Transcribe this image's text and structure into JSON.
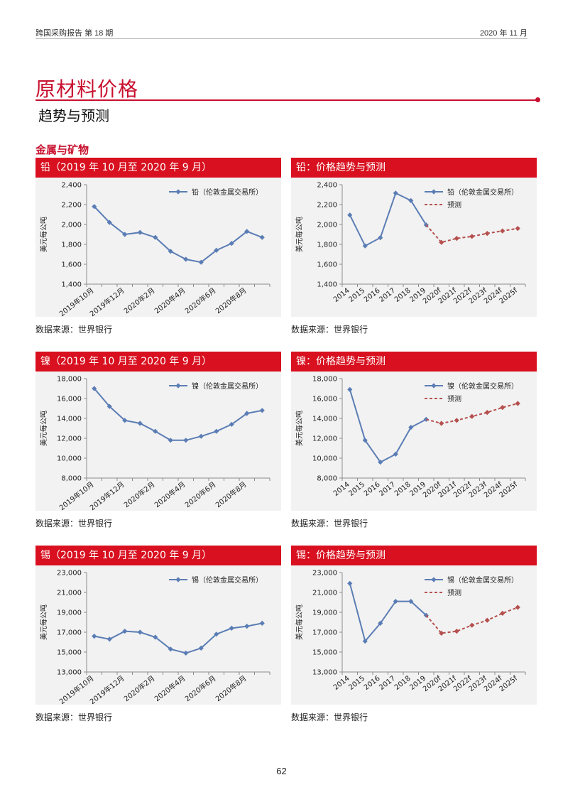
{
  "header": {
    "left": "跨国采购报告 第 18 期",
    "right": "2020 年 11 月"
  },
  "title": "原材料价格",
  "subtitle": "趋势与预测",
  "section": "金属与矿物",
  "page_number": "62",
  "colors": {
    "accent": "#d8101f",
    "series": "#5b7db5",
    "forecast": "#b5504f",
    "panel_bg": "#f2f2f2"
  },
  "chart_data": [
    {
      "id": "lead-monthly",
      "type": "line",
      "title": "铅（2019 年 10 月至 2020 年 9 月）",
      "ylabel": "美元每公吨",
      "ylim": [
        1400,
        2400
      ],
      "yticks": [
        1400,
        1600,
        1800,
        2000,
        2200,
        2400
      ],
      "x": [
        "2019年10月",
        "2019年11月",
        "2019年12月",
        "2020年1月",
        "2020年2月",
        "2020年3月",
        "2020年4月",
        "2020年5月",
        "2020年6月",
        "2020年7月",
        "2020年8月",
        "2020年9月"
      ],
      "xtick_labels": [
        "2019年10月",
        "2019年12月",
        "2020年2月",
        "2020年4月",
        "2020年6月",
        "2020年8月"
      ],
      "series": [
        {
          "name": "铅（伦敦金属交易所）",
          "values": [
            2180,
            2020,
            1900,
            1920,
            1870,
            1730,
            1650,
            1620,
            1740,
            1810,
            1930,
            1870
          ]
        }
      ],
      "legend": "top-right",
      "source": "数据来源：世界银行"
    },
    {
      "id": "lead-annual",
      "type": "line",
      "title": "铅：价格趋势与预测",
      "ylabel": "美元每公吨",
      "ylim": [
        1400,
        2400
      ],
      "yticks": [
        1400,
        1600,
        1800,
        2000,
        2200,
        2400
      ],
      "x": [
        "2014",
        "2015",
        "2016",
        "2017",
        "2018",
        "2019",
        "2020f",
        "2021f",
        "2022f",
        "2023f",
        "2024f",
        "2025f"
      ],
      "series": [
        {
          "name": "铅（伦敦金属交易所）",
          "values": [
            2095,
            1785,
            1867,
            2315,
            2240,
            1995,
            null,
            null,
            null,
            null,
            null,
            null
          ]
        },
        {
          "name": "预测",
          "values": [
            null,
            null,
            null,
            null,
            null,
            1995,
            1820,
            1860,
            1880,
            1910,
            1935,
            1960
          ]
        }
      ],
      "legend": "top-right",
      "source": "数据来源：世界银行"
    },
    {
      "id": "nickel-monthly",
      "type": "line",
      "title": "镍（2019 年 10 月至 2020 年 9 月）",
      "ylabel": "美元每公吨",
      "ylim": [
        8000,
        18000
      ],
      "yticks": [
        8000,
        10000,
        12000,
        14000,
        16000,
        18000
      ],
      "x": [
        "2019年10月",
        "2019年11月",
        "2019年12月",
        "2020年1月",
        "2020年2月",
        "2020年3月",
        "2020年4月",
        "2020年5月",
        "2020年6月",
        "2020年7月",
        "2020年8月",
        "2020年9月"
      ],
      "xtick_labels": [
        "2019年10月",
        "2019年12月",
        "2020年2月",
        "2020年4月",
        "2020年6月",
        "2020年8月"
      ],
      "series": [
        {
          "name": "镍（伦敦金属交易所）",
          "values": [
            17000,
            15200,
            13800,
            13500,
            12700,
            11800,
            11800,
            12200,
            12700,
            13400,
            14500,
            14800
          ]
        }
      ],
      "legend": "top-right",
      "source": "数据来源：世界银行"
    },
    {
      "id": "nickel-annual",
      "type": "line",
      "title": "镍：价格趋势与预测",
      "ylabel": "美元每公吨",
      "ylim": [
        8000,
        18000
      ],
      "yticks": [
        8000,
        10000,
        12000,
        14000,
        16000,
        18000
      ],
      "x": [
        "2014",
        "2015",
        "2016",
        "2017",
        "2018",
        "2019",
        "2020f",
        "2021f",
        "2022f",
        "2023f",
        "2024f",
        "2025f"
      ],
      "series": [
        {
          "name": "镍（伦敦金属交易所）",
          "values": [
            16900,
            11800,
            9600,
            10400,
            13100,
            13900,
            null,
            null,
            null,
            null,
            null,
            null
          ]
        },
        {
          "name": "预测",
          "values": [
            null,
            null,
            null,
            null,
            null,
            13900,
            13500,
            13800,
            14200,
            14600,
            15100,
            15500
          ]
        }
      ],
      "legend": "top-right",
      "source": "数据来源：世界银行"
    },
    {
      "id": "tin-monthly",
      "type": "line",
      "title": "锡（2019 年 10 月至 2020 年 9 月）",
      "ylabel": "美元每公吨",
      "ylim": [
        13000,
        23000
      ],
      "yticks": [
        13000,
        15000,
        17000,
        19000,
        21000,
        23000
      ],
      "x": [
        "2019年10月",
        "2019年11月",
        "2019年12月",
        "2020年1月",
        "2020年2月",
        "2020年3月",
        "2020年4月",
        "2020年5月",
        "2020年6月",
        "2020年7月",
        "2020年8月",
        "2020年9月"
      ],
      "xtick_labels": [
        "2019年10月",
        "2019年12月",
        "2020年2月",
        "2020年4月",
        "2020年6月",
        "2020年8月"
      ],
      "series": [
        {
          "name": "锡（伦敦金属交易所）",
          "values": [
            16600,
            16300,
            17100,
            17000,
            16500,
            15300,
            14900,
            15400,
            16800,
            17400,
            17600,
            17900
          ]
        }
      ],
      "legend": "top-right",
      "source": "数据来源：世界银行"
    },
    {
      "id": "tin-annual",
      "type": "line",
      "title": "锡：价格趋势与预测",
      "ylabel": "美元每公吨",
      "ylim": [
        13000,
        23000
      ],
      "yticks": [
        13000,
        15000,
        17000,
        19000,
        21000,
        23000
      ],
      "x": [
        "2014",
        "2015",
        "2016",
        "2017",
        "2018",
        "2019",
        "2020f",
        "2021f",
        "2022f",
        "2023f",
        "2024f",
        "2025f"
      ],
      "series": [
        {
          "name": "锡（伦敦金属交易所）",
          "values": [
            21900,
            16100,
            17900,
            20100,
            20100,
            18700,
            null,
            null,
            null,
            null,
            null,
            null
          ]
        },
        {
          "name": "预测",
          "values": [
            null,
            null,
            null,
            null,
            null,
            18700,
            16900,
            17100,
            17700,
            18200,
            18900,
            19500
          ]
        }
      ],
      "legend": "top-right",
      "source": "数据来源：世界银行"
    }
  ]
}
